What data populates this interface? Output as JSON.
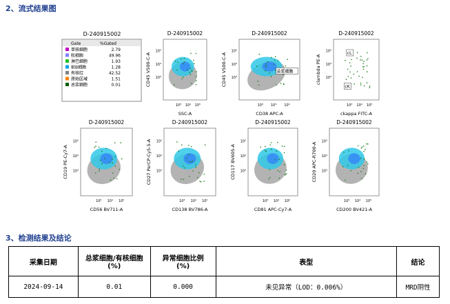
{
  "section_plots": {
    "title": "2、流式结果图"
  },
  "gate_table": {
    "title": "D-240915002",
    "headers": [
      "Gate",
      "%Gated"
    ],
    "rows": [
      {
        "name": "单核细胞",
        "value": 2.79,
        "color": "#c000c0"
      },
      {
        "name": "粒细胞",
        "value": 49.96,
        "color": "#8080ff"
      },
      {
        "name": "淋巴细胞",
        "value": 1.93,
        "color": "#20c020"
      },
      {
        "name": "前B细胞",
        "value": 1.28,
        "color": "#00a0e0"
      },
      {
        "name": "有核红",
        "value": 42.52,
        "color": "#808080"
      },
      {
        "name": "原始区域",
        "value": 1.51,
        "color": "#ff8000"
      },
      {
        "name": "总浆细胞",
        "value": 0.01,
        "color": "#006000"
      }
    ]
  },
  "axis_ticks": [
    "10³",
    "10⁴",
    "10⁵"
  ],
  "plots": [
    {
      "title": "D-240915002",
      "x_label": "SSC-A",
      "y_label": "CD45 V500-C-A"
    },
    {
      "title": "D-240915002",
      "x_label": "CD38 APC-A",
      "y_label": "CD45 V500-C-A",
      "gate_labels": [
        "总浆细胞"
      ]
    },
    {
      "title": "D-240915002",
      "x_label": "ckappa FITC-A",
      "y_label": "clambda PE-A",
      "gate_labels": [
        "cL",
        "cK"
      ]
    },
    {
      "title": "D-240915002",
      "x_label": "CD56 BV711-A",
      "y_label": "CD19 PE-Cy7-A"
    },
    {
      "title": "D-240915002",
      "x_label": "CD138 BV786-A",
      "y_label": "CD27 PerCP-Cy5-5-A"
    },
    {
      "title": "D-240915002",
      "x_label": "CD81 APC-Cy7-A",
      "y_label": "CD117 BV605-A"
    },
    {
      "title": "D-240915002",
      "x_label": "CD200 BV421-A",
      "y_label": "CD20 APC-R700-A"
    }
  ],
  "section_results": {
    "title": "3、检测结果及结论"
  },
  "table": {
    "headers": [
      [
        "采集日期"
      ],
      [
        "总浆细胞/有核细胞",
        "(%)"
      ],
      [
        "异常细胞比例",
        "(%)"
      ],
      [
        "表型"
      ],
      [
        "结论"
      ]
    ],
    "rows": [
      [
        "2024-09-14",
        "0.01",
        "0.000",
        "未见异常（LOD：0.006%）",
        "MRD阴性"
      ]
    ]
  }
}
